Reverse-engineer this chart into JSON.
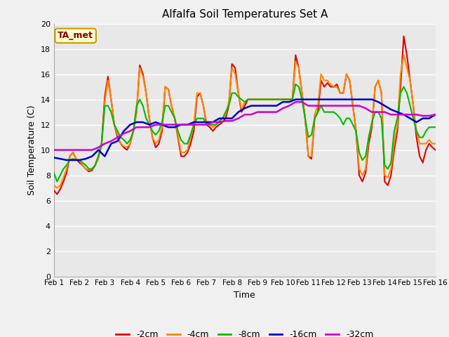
{
  "title": "Alfalfa Soil Temperatures Set A",
  "xlabel": "Time",
  "ylabel": "Soil Temperature (C)",
  "ylim": [
    0,
    20
  ],
  "yticks": [
    0,
    2,
    4,
    6,
    8,
    10,
    12,
    14,
    16,
    18,
    20
  ],
  "xlim": [
    0,
    15
  ],
  "xtick_labels": [
    "Feb 1",
    "Feb 2",
    "Feb 3",
    "Feb 4",
    "Feb 5",
    "Feb 6",
    "Feb 7",
    "Feb 8",
    "Feb 9",
    "Feb 10",
    "Feb 11",
    "Feb 12",
    "Feb 13",
    "Feb 14",
    "Feb 15",
    "Feb 16"
  ],
  "fig_bg_color": "#ffffff",
  "plot_bg_color": "#e8e8e8",
  "grid_color": "#ffffff",
  "annotation_text": "TA_met",
  "annotation_color": "#880000",
  "annotation_bg": "#ffffcc",
  "annotation_edge": "#cc9900",
  "series": {
    "neg2cm": {
      "label": "-2cm",
      "color": "#dd0000",
      "linewidth": 1.5,
      "x": [
        0,
        0.125,
        0.25,
        0.375,
        0.5,
        0.625,
        0.75,
        0.875,
        1.0,
        1.125,
        1.25,
        1.375,
        1.5,
        1.625,
        1.75,
        1.875,
        2.0,
        2.125,
        2.25,
        2.375,
        2.5,
        2.625,
        2.75,
        2.875,
        3.0,
        3.125,
        3.25,
        3.375,
        3.5,
        3.625,
        3.75,
        3.875,
        4.0,
        4.125,
        4.25,
        4.375,
        4.5,
        4.625,
        4.75,
        4.875,
        5.0,
        5.125,
        5.25,
        5.375,
        5.5,
        5.625,
        5.75,
        5.875,
        6.0,
        6.125,
        6.25,
        6.375,
        6.5,
        6.625,
        6.75,
        6.875,
        7.0,
        7.125,
        7.25,
        7.375,
        7.5,
        7.625,
        7.75,
        7.875,
        8.0,
        8.125,
        8.25,
        8.375,
        8.5,
        8.625,
        8.75,
        8.875,
        9.0,
        9.125,
        9.25,
        9.375,
        9.5,
        9.625,
        9.75,
        9.875,
        10.0,
        10.125,
        10.25,
        10.375,
        10.5,
        10.625,
        10.75,
        10.875,
        11.0,
        11.125,
        11.25,
        11.375,
        11.5,
        11.625,
        11.75,
        11.875,
        12.0,
        12.125,
        12.25,
        12.375,
        12.5,
        12.625,
        12.75,
        12.875,
        13.0,
        13.125,
        13.25,
        13.375,
        13.5,
        13.625,
        13.75,
        13.875,
        14.0,
        14.125,
        14.25,
        14.375,
        14.5,
        14.625,
        14.75,
        14.875,
        15.0
      ],
      "y": [
        6.8,
        6.5,
        6.9,
        7.5,
        8.2,
        9.5,
        9.8,
        9.3,
        9.0,
        8.8,
        8.5,
        8.3,
        8.4,
        8.8,
        9.5,
        10.5,
        14.2,
        15.8,
        14.0,
        12.0,
        11.0,
        10.5,
        10.2,
        10.0,
        10.5,
        11.5,
        13.0,
        16.7,
        16.0,
        14.5,
        12.5,
        11.0,
        10.2,
        10.5,
        11.5,
        15.0,
        14.8,
        13.5,
        12.5,
        11.0,
        9.5,
        9.5,
        9.8,
        10.5,
        11.5,
        14.2,
        14.5,
        13.5,
        12.0,
        11.8,
        11.5,
        11.8,
        12.0,
        12.2,
        12.5,
        13.5,
        16.8,
        16.5,
        14.5,
        13.0,
        13.5,
        14.0,
        14.0,
        14.0,
        14.0,
        14.0,
        14.0,
        14.0,
        14.0,
        14.0,
        14.0,
        14.0,
        14.0,
        14.0,
        14.0,
        14.0,
        17.5,
        16.5,
        14.5,
        12.5,
        9.5,
        9.3,
        12.5,
        13.0,
        15.5,
        15.0,
        15.3,
        15.0,
        15.0,
        15.2,
        14.5,
        14.5,
        16.0,
        15.5,
        13.5,
        11.5,
        8.0,
        7.5,
        8.2,
        10.5,
        11.8,
        15.0,
        15.5,
        14.5,
        7.5,
        7.2,
        8.0,
        10.0,
        11.5,
        15.0,
        19.0,
        17.5,
        15.5,
        13.5,
        11.0,
        9.5,
        9.0,
        10.0,
        10.5,
        10.2,
        10.0
      ]
    },
    "neg4cm": {
      "label": "-4cm",
      "color": "#ff8800",
      "linewidth": 1.5,
      "x": [
        0,
        0.125,
        0.25,
        0.375,
        0.5,
        0.625,
        0.75,
        0.875,
        1.0,
        1.125,
        1.25,
        1.375,
        1.5,
        1.625,
        1.75,
        1.875,
        2.0,
        2.125,
        2.25,
        2.375,
        2.5,
        2.625,
        2.75,
        2.875,
        3.0,
        3.125,
        3.25,
        3.375,
        3.5,
        3.625,
        3.75,
        3.875,
        4.0,
        4.125,
        4.25,
        4.375,
        4.5,
        4.625,
        4.75,
        4.875,
        5.0,
        5.125,
        5.25,
        5.375,
        5.5,
        5.625,
        5.75,
        5.875,
        6.0,
        6.125,
        6.25,
        6.375,
        6.5,
        6.625,
        6.75,
        6.875,
        7.0,
        7.125,
        7.25,
        7.375,
        7.5,
        7.625,
        7.75,
        7.875,
        8.0,
        8.125,
        8.25,
        8.375,
        8.5,
        8.625,
        8.75,
        8.875,
        9.0,
        9.125,
        9.25,
        9.375,
        9.5,
        9.625,
        9.75,
        9.875,
        10.0,
        10.125,
        10.25,
        10.375,
        10.5,
        10.625,
        10.75,
        10.875,
        11.0,
        11.125,
        11.25,
        11.375,
        11.5,
        11.625,
        11.75,
        11.875,
        12.0,
        12.125,
        12.25,
        12.375,
        12.5,
        12.625,
        12.75,
        12.875,
        13.0,
        13.125,
        13.25,
        13.375,
        13.5,
        13.625,
        13.75,
        13.875,
        14.0,
        14.125,
        14.25,
        14.375,
        14.5,
        14.625,
        14.75,
        14.875,
        15.0
      ],
      "y": [
        7.2,
        7.0,
        7.2,
        7.8,
        8.5,
        9.5,
        9.8,
        9.3,
        9.2,
        8.8,
        8.5,
        8.4,
        8.5,
        8.8,
        9.3,
        10.3,
        13.8,
        15.5,
        14.0,
        12.0,
        11.2,
        10.5,
        10.3,
        10.2,
        10.5,
        11.5,
        13.0,
        16.5,
        15.8,
        14.5,
        12.5,
        11.0,
        10.5,
        10.8,
        11.8,
        15.0,
        14.8,
        13.5,
        12.5,
        11.2,
        9.8,
        9.8,
        10.0,
        11.0,
        12.0,
        14.5,
        14.5,
        13.5,
        12.2,
        12.0,
        11.8,
        12.0,
        12.2,
        12.5,
        12.8,
        13.8,
        16.5,
        16.0,
        14.5,
        13.2,
        13.8,
        14.0,
        14.0,
        14.0,
        14.0,
        14.0,
        14.0,
        14.0,
        14.0,
        14.0,
        14.0,
        14.0,
        14.0,
        14.0,
        14.0,
        14.0,
        17.0,
        16.5,
        14.5,
        12.5,
        9.5,
        9.5,
        12.8,
        13.5,
        16.0,
        15.5,
        15.5,
        15.2,
        15.0,
        15.0,
        14.5,
        14.5,
        16.0,
        15.5,
        13.5,
        11.5,
        8.5,
        8.0,
        8.5,
        11.0,
        12.0,
        15.0,
        15.5,
        14.5,
        8.0,
        7.8,
        8.5,
        10.5,
        12.0,
        16.0,
        17.5,
        16.5,
        15.5,
        13.5,
        11.5,
        10.5,
        10.5,
        10.5,
        10.8,
        10.5,
        10.5
      ]
    },
    "neg8cm": {
      "label": "-8cm",
      "color": "#00bb00",
      "linewidth": 1.5,
      "x": [
        0,
        0.125,
        0.25,
        0.375,
        0.5,
        0.625,
        0.75,
        0.875,
        1.0,
        1.125,
        1.25,
        1.375,
        1.5,
        1.625,
        1.75,
        1.875,
        2.0,
        2.125,
        2.25,
        2.375,
        2.5,
        2.625,
        2.75,
        2.875,
        3.0,
        3.125,
        3.25,
        3.375,
        3.5,
        3.625,
        3.75,
        3.875,
        4.0,
        4.125,
        4.25,
        4.375,
        4.5,
        4.625,
        4.75,
        4.875,
        5.0,
        5.125,
        5.25,
        5.375,
        5.5,
        5.625,
        5.75,
        5.875,
        6.0,
        6.125,
        6.25,
        6.375,
        6.5,
        6.625,
        6.75,
        6.875,
        7.0,
        7.125,
        7.25,
        7.375,
        7.5,
        7.625,
        7.75,
        7.875,
        8.0,
        8.125,
        8.25,
        8.375,
        8.5,
        8.625,
        8.75,
        8.875,
        9.0,
        9.125,
        9.25,
        9.375,
        9.5,
        9.625,
        9.75,
        9.875,
        10.0,
        10.125,
        10.25,
        10.375,
        10.5,
        10.625,
        10.75,
        10.875,
        11.0,
        11.125,
        11.25,
        11.375,
        11.5,
        11.625,
        11.75,
        11.875,
        12.0,
        12.125,
        12.25,
        12.375,
        12.5,
        12.625,
        12.75,
        12.875,
        13.0,
        13.125,
        13.25,
        13.375,
        13.5,
        13.625,
        13.75,
        13.875,
        14.0,
        14.125,
        14.25,
        14.375,
        14.5,
        14.625,
        14.75,
        14.875,
        15.0
      ],
      "y": [
        8.2,
        7.5,
        8.0,
        8.5,
        8.8,
        9.2,
        9.3,
        9.2,
        9.2,
        9.0,
        8.8,
        8.5,
        8.5,
        8.8,
        9.5,
        10.5,
        13.5,
        13.5,
        13.0,
        12.0,
        11.5,
        11.0,
        10.8,
        10.5,
        10.8,
        11.5,
        13.5,
        14.0,
        13.5,
        12.5,
        12.0,
        11.5,
        11.2,
        11.5,
        12.2,
        13.5,
        13.5,
        13.0,
        12.5,
        11.5,
        10.8,
        10.5,
        10.5,
        11.2,
        12.0,
        12.5,
        12.5,
        12.5,
        12.0,
        12.0,
        12.0,
        12.0,
        12.3,
        12.5,
        13.0,
        13.5,
        14.5,
        14.5,
        14.2,
        14.0,
        13.8,
        14.0,
        14.0,
        14.0,
        14.0,
        14.0,
        14.0,
        14.0,
        14.0,
        14.0,
        14.0,
        14.0,
        14.0,
        14.0,
        14.0,
        14.0,
        15.2,
        15.0,
        14.0,
        12.5,
        11.0,
        11.2,
        12.5,
        13.0,
        13.5,
        13.0,
        13.0,
        13.0,
        13.0,
        12.8,
        12.5,
        12.0,
        12.5,
        12.5,
        12.0,
        11.5,
        9.8,
        9.2,
        9.5,
        11.0,
        12.2,
        13.0,
        13.0,
        12.5,
        8.8,
        8.5,
        9.0,
        11.5,
        12.5,
        14.5,
        15.0,
        14.5,
        13.5,
        12.5,
        11.5,
        11.0,
        11.0,
        11.5,
        11.8,
        11.8,
        11.8
      ]
    },
    "neg16cm": {
      "label": "-16cm",
      "color": "#0000cc",
      "linewidth": 1.8,
      "x": [
        0,
        0.25,
        0.5,
        0.75,
        1.0,
        1.25,
        1.5,
        1.75,
        2.0,
        2.25,
        2.5,
        2.75,
        3.0,
        3.25,
        3.5,
        3.75,
        4.0,
        4.25,
        4.5,
        4.75,
        5.0,
        5.25,
        5.5,
        5.75,
        6.0,
        6.25,
        6.5,
        6.75,
        7.0,
        7.25,
        7.5,
        7.75,
        8.0,
        8.25,
        8.5,
        8.75,
        9.0,
        9.25,
        9.5,
        9.75,
        10.0,
        10.25,
        10.5,
        10.75,
        11.0,
        11.25,
        11.5,
        11.75,
        12.0,
        12.25,
        12.5,
        12.75,
        13.0,
        13.25,
        13.5,
        13.75,
        14.0,
        14.25,
        14.5,
        14.75,
        15.0
      ],
      "y": [
        9.4,
        9.3,
        9.2,
        9.2,
        9.2,
        9.3,
        9.5,
        10.0,
        9.5,
        10.5,
        10.7,
        11.5,
        12.0,
        12.2,
        12.2,
        12.0,
        12.2,
        12.0,
        11.8,
        11.8,
        12.0,
        12.0,
        12.2,
        12.2,
        12.2,
        12.2,
        12.5,
        12.5,
        12.5,
        13.0,
        13.3,
        13.5,
        13.5,
        13.5,
        13.5,
        13.5,
        13.8,
        13.8,
        14.0,
        14.0,
        14.0,
        14.0,
        14.0,
        14.0,
        14.0,
        14.0,
        14.0,
        14.0,
        14.0,
        14.0,
        14.0,
        13.8,
        13.5,
        13.2,
        13.0,
        12.8,
        12.5,
        12.2,
        12.5,
        12.5,
        12.8
      ]
    },
    "neg32cm": {
      "label": "-32cm",
      "color": "#cc00cc",
      "linewidth": 1.8,
      "x": [
        0,
        0.25,
        0.5,
        0.75,
        1.0,
        1.25,
        1.5,
        1.75,
        2.0,
        2.25,
        2.5,
        2.75,
        3.0,
        3.25,
        3.5,
        3.75,
        4.0,
        4.25,
        4.5,
        4.75,
        5.0,
        5.25,
        5.5,
        5.75,
        6.0,
        6.25,
        6.5,
        6.75,
        7.0,
        7.25,
        7.5,
        7.75,
        8.0,
        8.25,
        8.5,
        8.75,
        9.0,
        9.25,
        9.5,
        9.75,
        10.0,
        10.25,
        10.5,
        10.75,
        11.0,
        11.25,
        11.5,
        11.75,
        12.0,
        12.25,
        12.5,
        12.75,
        13.0,
        13.25,
        13.5,
        13.75,
        14.0,
        14.25,
        14.5,
        14.75,
        15.0
      ],
      "y": [
        10.0,
        10.0,
        10.0,
        10.0,
        10.0,
        10.0,
        10.0,
        10.2,
        10.5,
        10.7,
        11.0,
        11.3,
        11.5,
        11.8,
        11.8,
        11.8,
        12.0,
        12.0,
        12.0,
        12.0,
        12.0,
        12.0,
        12.0,
        12.0,
        12.0,
        12.2,
        12.2,
        12.3,
        12.3,
        12.5,
        12.8,
        12.8,
        13.0,
        13.0,
        13.0,
        13.0,
        13.3,
        13.5,
        13.8,
        13.8,
        13.5,
        13.5,
        13.5,
        13.5,
        13.5,
        13.5,
        13.5,
        13.5,
        13.5,
        13.3,
        13.0,
        13.0,
        13.0,
        12.8,
        12.8,
        12.8,
        12.8,
        12.8,
        12.7,
        12.7,
        12.8
      ]
    }
  }
}
